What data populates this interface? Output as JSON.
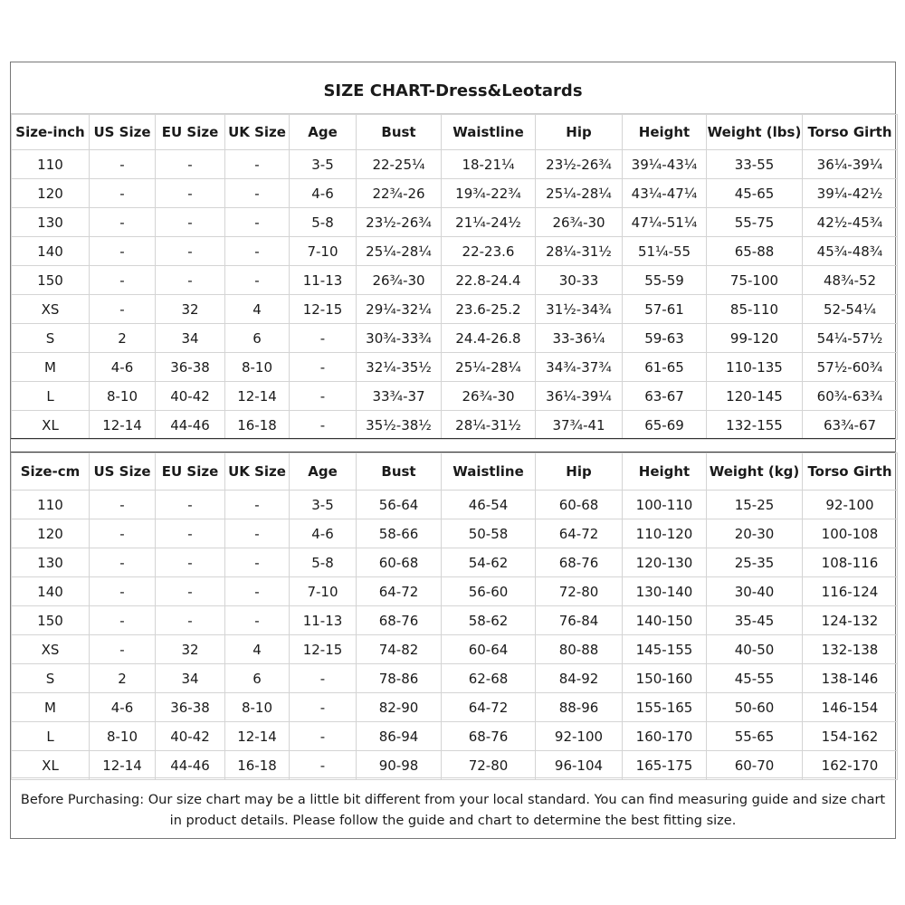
{
  "title": "SIZE CHART-Dress&Leotards",
  "inch_table": {
    "headers": [
      "Size-inch",
      "US Size",
      "EU Size",
      "UK Size",
      "Age",
      "Bust",
      "Waistline",
      "Hip",
      "Height",
      "Weight (lbs)",
      "Torso Girth"
    ],
    "rows": [
      [
        "110",
        "-",
        "-",
        "-",
        "3-5",
        "22-25¼",
        "18-21¼",
        "23½-26¾",
        "39¼-43¼",
        "33-55",
        "36¼-39¼"
      ],
      [
        "120",
        "-",
        "-",
        "-",
        "4-6",
        "22¾-26",
        "19¾-22¾",
        "25¼-28¼",
        "43¼-47¼",
        "45-65",
        "39¼-42½"
      ],
      [
        "130",
        "-",
        "-",
        "-",
        "5-8",
        "23½-26¾",
        "21¼-24½",
        "26¾-30",
        "47¼-51¼",
        "55-75",
        "42½-45¾"
      ],
      [
        "140",
        "-",
        "-",
        "-",
        "7-10",
        "25¼-28¼",
        "22-23.6",
        "28¼-31½",
        "51¼-55",
        "65-88",
        "45¾-48¾"
      ],
      [
        "150",
        "-",
        "-",
        "-",
        "11-13",
        "26¾-30",
        "22.8-24.4",
        "30-33",
        "55-59",
        "75-100",
        "48¾-52"
      ],
      [
        "XS",
        "-",
        "32",
        "4",
        "12-15",
        "29¼-32¼",
        "23.6-25.2",
        "31½-34¾",
        "57-61",
        "85-110",
        "52-54¼"
      ],
      [
        "S",
        "2",
        "34",
        "6",
        "-",
        "30¾-33¾",
        "24.4-26.8",
        "33-36¼",
        "59-63",
        "99-120",
        "54¼-57½"
      ],
      [
        "M",
        "4-6",
        "36-38",
        "8-10",
        "-",
        "32¼-35½",
        "25¼-28¼",
        "34¾-37¾",
        "61-65",
        "110-135",
        "57½-60¾"
      ],
      [
        "L",
        "8-10",
        "40-42",
        "12-14",
        "-",
        "33¾-37",
        "26¾-30",
        "36¼-39¼",
        "63-67",
        "120-145",
        "60¾-63¾"
      ],
      [
        "XL",
        "12-14",
        "44-46",
        "16-18",
        "-",
        "35½-38½",
        "28¼-31½",
        "37¾-41",
        "65-69",
        "132-155",
        "63¾-67"
      ]
    ]
  },
  "cm_table": {
    "headers": [
      "Size-cm",
      "US Size",
      "EU Size",
      "UK Size",
      "Age",
      "Bust",
      "Waistline",
      "Hip",
      "Height",
      "Weight (kg)",
      "Torso Girth"
    ],
    "rows": [
      [
        "110",
        "-",
        "-",
        "-",
        "3-5",
        "56-64",
        "46-54",
        "60-68",
        "100-110",
        "15-25",
        "92-100"
      ],
      [
        "120",
        "-",
        "-",
        "-",
        "4-6",
        "58-66",
        "50-58",
        "64-72",
        "110-120",
        "20-30",
        "100-108"
      ],
      [
        "130",
        "-",
        "-",
        "-",
        "5-8",
        "60-68",
        "54-62",
        "68-76",
        "120-130",
        "25-35",
        "108-116"
      ],
      [
        "140",
        "-",
        "-",
        "-",
        "7-10",
        "64-72",
        "56-60",
        "72-80",
        "130-140",
        "30-40",
        "116-124"
      ],
      [
        "150",
        "-",
        "-",
        "-",
        "11-13",
        "68-76",
        "58-62",
        "76-84",
        "140-150",
        "35-45",
        "124-132"
      ],
      [
        "XS",
        "-",
        "32",
        "4",
        "12-15",
        "74-82",
        "60-64",
        "80-88",
        "145-155",
        "40-50",
        "132-138"
      ],
      [
        "S",
        "2",
        "34",
        "6",
        "-",
        "78-86",
        "62-68",
        "84-92",
        "150-160",
        "45-55",
        "138-146"
      ],
      [
        "M",
        "4-6",
        "36-38",
        "8-10",
        "-",
        "82-90",
        "64-72",
        "88-96",
        "155-165",
        "50-60",
        "146-154"
      ],
      [
        "L",
        "8-10",
        "40-42",
        "12-14",
        "-",
        "86-94",
        "68-76",
        "92-100",
        "160-170",
        "55-65",
        "154-162"
      ],
      [
        "XL",
        "12-14",
        "44-46",
        "16-18",
        "-",
        "90-98",
        "72-80",
        "96-104",
        "165-175",
        "60-70",
        "162-170"
      ]
    ]
  },
  "note": "Before Purchasing: Our size chart may be a little bit different from your local standard. You can find measuring guide and size chart in product details. Please follow the guide and chart to determine the best fitting size."
}
